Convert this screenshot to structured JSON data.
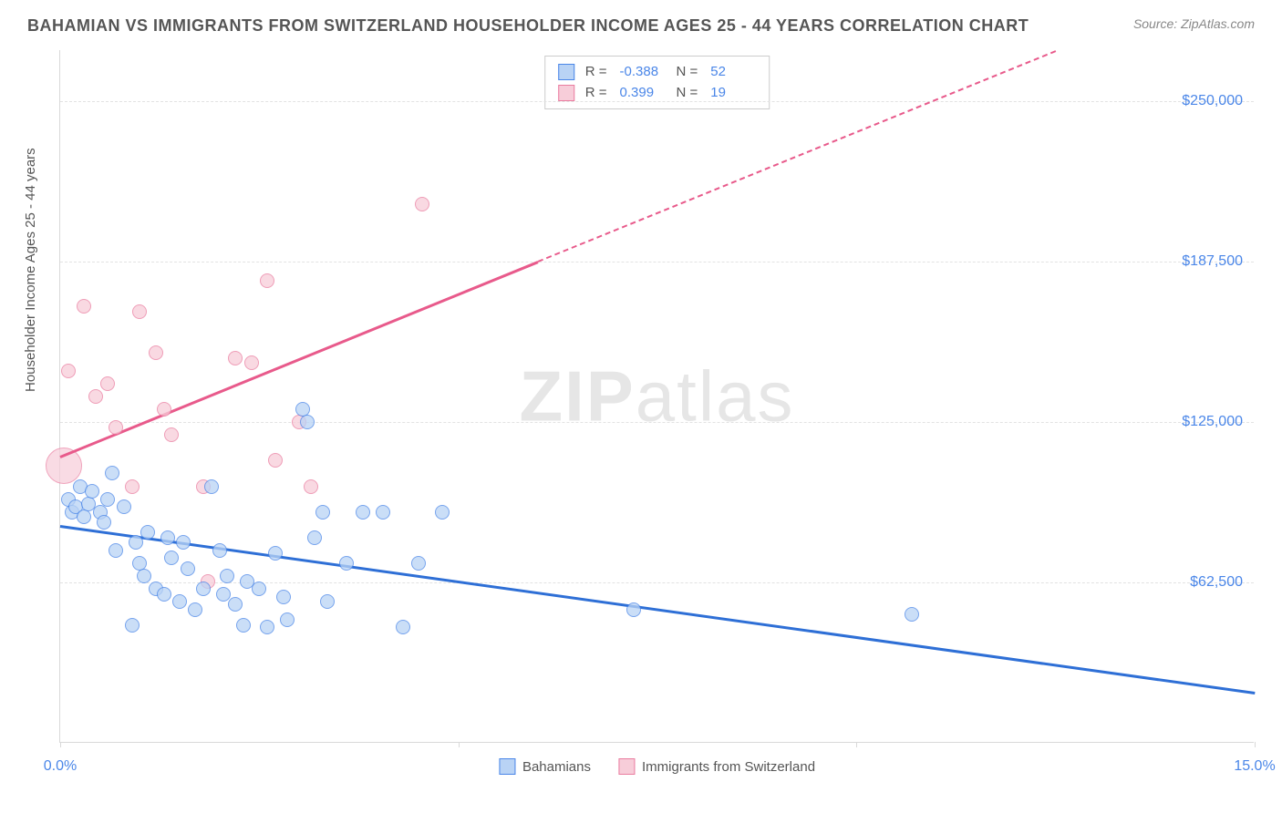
{
  "header": {
    "title": "BAHAMIAN VS IMMIGRANTS FROM SWITZERLAND HOUSEHOLDER INCOME AGES 25 - 44 YEARS CORRELATION CHART",
    "source": "Source: ZipAtlas.com"
  },
  "watermark": {
    "bold": "ZIP",
    "light": "atlas"
  },
  "chart": {
    "type": "scatter",
    "y_axis_label": "Householder Income Ages 25 - 44 years",
    "xlim": [
      0,
      15
    ],
    "ylim": [
      0,
      270000
    ],
    "x_ticks": [
      0,
      5,
      10,
      15
    ],
    "x_tick_labels": [
      "0.0%",
      "",
      "",
      "15.0%"
    ],
    "y_ticks": [
      62500,
      125000,
      187500,
      250000
    ],
    "y_tick_labels": [
      "$62,500",
      "$125,000",
      "$187,500",
      "$250,000"
    ],
    "background_color": "#ffffff",
    "grid_color": "#e2e2e2",
    "axis_color": "#d9d9d9",
    "tick_label_color": "#4a86e8",
    "point_radius": 8,
    "series": {
      "blue": {
        "label": "Bahamians",
        "fill": "#b9d3f5",
        "stroke": "#4a86e8",
        "trend_color": "#2e6fd6",
        "R": "-0.388",
        "N": "52",
        "trend": {
          "x1": 0,
          "y1": 85000,
          "x2": 15,
          "y2": 20000
        },
        "points": [
          [
            0.1,
            95000
          ],
          [
            0.15,
            90000
          ],
          [
            0.2,
            92000
          ],
          [
            0.25,
            100000
          ],
          [
            0.3,
            88000
          ],
          [
            0.35,
            93000
          ],
          [
            0.4,
            98000
          ],
          [
            0.5,
            90000
          ],
          [
            0.55,
            86000
          ],
          [
            0.6,
            95000
          ],
          [
            0.65,
            105000
          ],
          [
            0.7,
            75000
          ],
          [
            0.8,
            92000
          ],
          [
            0.9,
            46000
          ],
          [
            0.95,
            78000
          ],
          [
            1.0,
            70000
          ],
          [
            1.05,
            65000
          ],
          [
            1.1,
            82000
          ],
          [
            1.2,
            60000
          ],
          [
            1.3,
            58000
          ],
          [
            1.35,
            80000
          ],
          [
            1.4,
            72000
          ],
          [
            1.5,
            55000
          ],
          [
            1.55,
            78000
          ],
          [
            1.6,
            68000
          ],
          [
            1.7,
            52000
          ],
          [
            1.8,
            60000
          ],
          [
            1.9,
            100000
          ],
          [
            2.0,
            75000
          ],
          [
            2.05,
            58000
          ],
          [
            2.1,
            65000
          ],
          [
            2.2,
            54000
          ],
          [
            2.3,
            46000
          ],
          [
            2.35,
            63000
          ],
          [
            2.5,
            60000
          ],
          [
            2.6,
            45000
          ],
          [
            2.7,
            74000
          ],
          [
            2.8,
            57000
          ],
          [
            2.85,
            48000
          ],
          [
            3.05,
            130000
          ],
          [
            3.1,
            125000
          ],
          [
            3.2,
            80000
          ],
          [
            3.3,
            90000
          ],
          [
            3.35,
            55000
          ],
          [
            3.6,
            70000
          ],
          [
            3.8,
            90000
          ],
          [
            4.05,
            90000
          ],
          [
            4.3,
            45000
          ],
          [
            4.5,
            70000
          ],
          [
            4.8,
            90000
          ],
          [
            7.2,
            52000
          ],
          [
            10.7,
            50000
          ]
        ]
      },
      "pink": {
        "label": "Immigrants from Switzerland",
        "fill": "#f7cdd9",
        "stroke": "#ea7da0",
        "trend_color": "#e85a8b",
        "R": "0.399",
        "N": "19",
        "trend_solid": {
          "x1": 0,
          "y1": 112000,
          "x2": 6.0,
          "y2": 188000
        },
        "trend_dash": {
          "x1": 6.0,
          "y1": 188000,
          "x2": 12.5,
          "y2": 270000
        },
        "points": [
          [
            0.1,
            145000
          ],
          [
            0.3,
            170000
          ],
          [
            0.45,
            135000
          ],
          [
            0.6,
            140000
          ],
          [
            0.7,
            123000
          ],
          [
            0.9,
            100000
          ],
          [
            1.0,
            168000
          ],
          [
            1.2,
            152000
          ],
          [
            1.3,
            130000
          ],
          [
            1.4,
            120000
          ],
          [
            1.8,
            100000
          ],
          [
            1.85,
            63000
          ],
          [
            2.2,
            150000
          ],
          [
            2.4,
            148000
          ],
          [
            2.6,
            180000
          ],
          [
            2.7,
            110000
          ],
          [
            3.0,
            125000
          ],
          [
            3.15,
            100000
          ],
          [
            4.55,
            210000
          ]
        ],
        "big_point": {
          "x": 0.05,
          "y": 108000,
          "r": 20
        }
      }
    }
  },
  "legend_top": {
    "r_label": "R =",
    "n_label": "N ="
  }
}
